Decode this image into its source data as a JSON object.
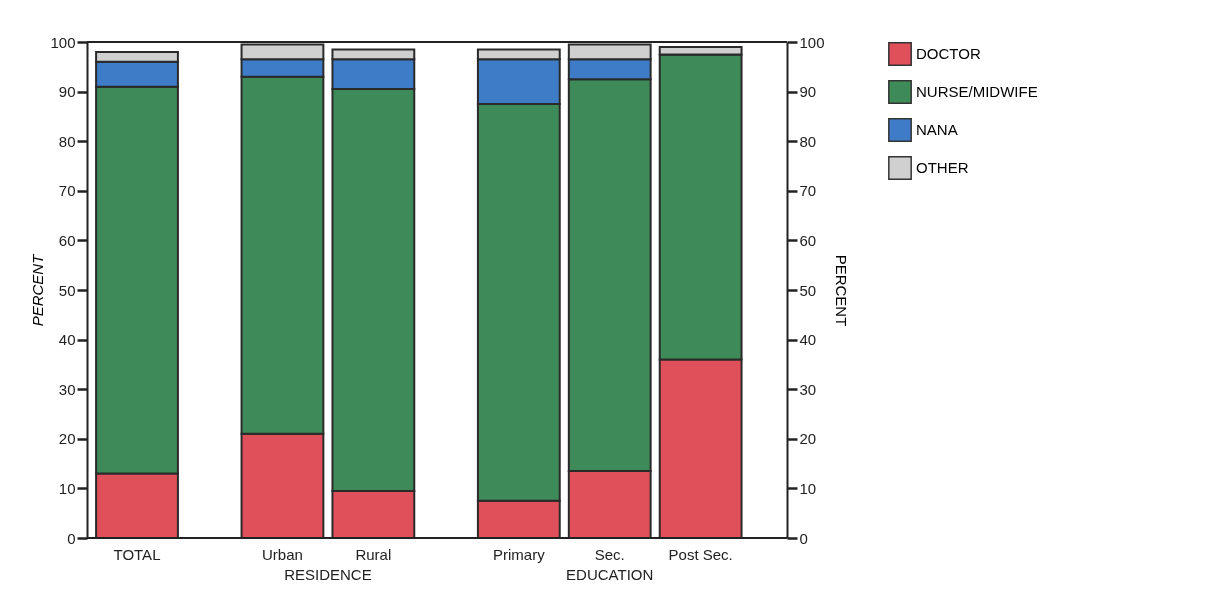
{
  "chart_data": {
    "type": "bar",
    "stacked": true,
    "categories": [
      "TOTAL",
      "Urban",
      "Rural",
      "Primary",
      "Sec.",
      "Post Sec."
    ],
    "series": [
      {
        "name": "DOCTOR",
        "color": "#e0505a",
        "values": [
          13,
          21,
          9.5,
          7.5,
          13.5,
          36
        ]
      },
      {
        "name": "NURSE/MIDWIFE",
        "color": "#3e8a58",
        "values": [
          78,
          72,
          81,
          80,
          79,
          61.5
        ]
      },
      {
        "name": "NANA",
        "color": "#3f7cc8",
        "values": [
          5,
          3.5,
          6,
          9,
          4,
          0
        ]
      },
      {
        "name": "OTHER",
        "color": "#d0d0d0",
        "values": [
          2,
          3,
          2,
          2,
          3,
          1.5
        ]
      }
    ],
    "ylabel": "PERCENT",
    "y2label": "PERCENT",
    "ylim": [
      0,
      100
    ],
    "yticks": [
      0,
      10,
      20,
      30,
      40,
      50,
      60,
      70,
      80,
      90,
      100
    ],
    "y2lim": [
      0,
      100
    ],
    "y2ticks": [
      0,
      10,
      20,
      30,
      40,
      50,
      60,
      70,
      80,
      90,
      100
    ],
    "annotations": [
      "RESIDENCE",
      "EDUCATION"
    ],
    "legend": "right",
    "grid": false
  }
}
